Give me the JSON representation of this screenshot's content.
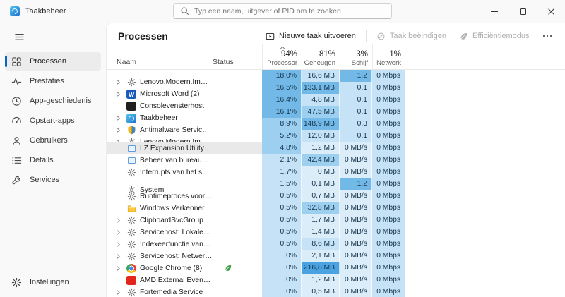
{
  "window": {
    "title": "Taakbeheer"
  },
  "search": {
    "placeholder": "Typ een naam, uitgever of PID om te zoeken"
  },
  "icons": {
    "more": "ellipsis-dots",
    "sort": "chevron-up",
    "status_leaf": "green-leaf"
  },
  "sidebar": {
    "items": [
      {
        "id": "processen",
        "label": "Processen",
        "icon": "grid",
        "selected": true
      },
      {
        "id": "prestaties",
        "label": "Prestaties",
        "icon": "pulse",
        "selected": false
      },
      {
        "id": "app-geschiedenis",
        "label": "App-geschiedenis",
        "icon": "history",
        "selected": false
      },
      {
        "id": "opstart-apps",
        "label": "Opstart-apps",
        "icon": "gauge",
        "selected": false
      },
      {
        "id": "gebruikers",
        "label": "Gebruikers",
        "icon": "users",
        "selected": false
      },
      {
        "id": "details",
        "label": "Details",
        "icon": "list",
        "selected": false
      },
      {
        "id": "services",
        "label": "Services",
        "icon": "wrench",
        "selected": false
      }
    ],
    "settings": {
      "id": "instellingen",
      "label": "Instellingen",
      "icon": "gear",
      "selected": false
    }
  },
  "toolbar": {
    "title": "Processen",
    "run_new_task": "Nieuwe taak uitvoeren",
    "end_task": "Taak beëindigen",
    "efficiency_mode": "Efficiëntiemodus"
  },
  "table": {
    "name_header": "Naam",
    "status_header": "Status",
    "usage_headers": [
      {
        "key": "processor",
        "percent": "94%",
        "label": "Processor",
        "sorted": true
      },
      {
        "key": "geheugen",
        "percent": "81%",
        "label": "Geheugen",
        "sorted": false
      },
      {
        "key": "schijf",
        "percent": "3%",
        "label": "Schijf",
        "sorted": false
      },
      {
        "key": "netwerk",
        "percent": "1%",
        "label": "Netwerk",
        "sorted": false
      }
    ],
    "rows": [
      {
        "name": "Lenovo.Modern.ImController (...",
        "icon": "gear",
        "chevron": true,
        "status_icon": "",
        "cpu": "18,0%",
        "mem": "16,6 MB",
        "disk": "1,2 MB/s",
        "net": "0 Mbps",
        "heat": [
          3,
          1,
          3,
          1
        ],
        "selected": false
      },
      {
        "name": "Microsoft Word (2)",
        "icon": "word",
        "chevron": true,
        "status_icon": "",
        "cpu": "16,5%",
        "mem": "133,1 MB",
        "disk": "0,1 MB/s",
        "net": "0 Mbps",
        "heat": [
          3,
          3,
          1,
          1
        ],
        "selected": false
      },
      {
        "name": "Consolevensterhost",
        "icon": "console",
        "chevron": false,
        "status_icon": "",
        "cpu": "16,4%",
        "mem": "4,8 MB",
        "disk": "0,1 MB/s",
        "net": "0 Mbps",
        "heat": [
          3,
          1,
          1,
          1
        ],
        "selected": false
      },
      {
        "name": "Taakbeheer",
        "icon": "taskmgr",
        "chevron": true,
        "status_icon": "",
        "cpu": "16,1%",
        "mem": "47,5 MB",
        "disk": "0,1 MB/s",
        "net": "0 Mbps",
        "heat": [
          3,
          2,
          1,
          1
        ],
        "selected": false
      },
      {
        "name": "Antimalware Service Executable",
        "icon": "shield",
        "chevron": true,
        "status_icon": "",
        "cpu": "8,9%",
        "mem": "148,9 MB",
        "disk": "0,3 MB/s",
        "net": "0 Mbps",
        "heat": [
          2,
          3,
          1,
          1
        ],
        "selected": false
      },
      {
        "name": "Lenovo.Modern.ImController (...",
        "icon": "gear",
        "chevron": true,
        "status_icon": "",
        "cpu": "5,2%",
        "mem": "12,0 MB",
        "disk": "0,1 MB/s",
        "net": "0 Mbps",
        "heat": [
          2,
          1,
          1,
          1
        ],
        "selected": false
      },
      {
        "name": "LZ Expansion Utility (32-bits)",
        "icon": "window",
        "chevron": false,
        "status_icon": "",
        "cpu": "4,8%",
        "mem": "1,2 MB",
        "disk": "0 MB/s",
        "net": "0 Mbps",
        "heat": [
          2,
          0,
          0,
          1
        ],
        "selected": true
      },
      {
        "name": "Beheer van bureaubladvensters",
        "icon": "window",
        "chevron": false,
        "status_icon": "",
        "cpu": "2,1%",
        "mem": "42,4 MB",
        "disk": "0 MB/s",
        "net": "0 Mbps",
        "heat": [
          1,
          2,
          0,
          1
        ],
        "selected": false
      },
      {
        "name": "Interrupts van het systeem",
        "icon": "gear",
        "chevron": false,
        "status_icon": "",
        "cpu": "1,7%",
        "mem": "0 MB",
        "disk": "0 MB/s",
        "net": "0 Mbps",
        "heat": [
          1,
          0,
          0,
          1
        ],
        "selected": false
      },
      {
        "name": "System",
        "icon": "gear",
        "chevron": false,
        "status_icon": "",
        "cpu": "1,5%",
        "mem": "0,1 MB",
        "disk": "1,2 MB/s",
        "net": "0 Mbps",
        "heat": [
          1,
          0,
          3,
          1
        ],
        "selected": false
      },
      {
        "name": "Runtimeproces voor client-serv...",
        "icon": "gear",
        "chevron": false,
        "status_icon": "",
        "cpu": "0,5%",
        "mem": "0,7 MB",
        "disk": "0 MB/s",
        "net": "0 Mbps",
        "heat": [
          1,
          0,
          0,
          1
        ],
        "selected": false
      },
      {
        "name": "Windows Verkenner",
        "icon": "folder",
        "chevron": false,
        "status_icon": "",
        "cpu": "0,5%",
        "mem": "32,8 MB",
        "disk": "0 MB/s",
        "net": "0 Mbps",
        "heat": [
          1,
          2,
          0,
          1
        ],
        "selected": false
      },
      {
        "name": "ClipboardSvcGroup",
        "icon": "gear",
        "chevron": true,
        "status_icon": "",
        "cpu": "0,5%",
        "mem": "1,7 MB",
        "disk": "0 MB/s",
        "net": "0 Mbps",
        "heat": [
          1,
          0,
          0,
          1
        ],
        "selected": false
      },
      {
        "name": "Servicehost: Lokale service (ne...",
        "icon": "gear",
        "chevron": true,
        "status_icon": "",
        "cpu": "0,5%",
        "mem": "1,4 MB",
        "disk": "0 MB/s",
        "net": "0 Mbps",
        "heat": [
          1,
          0,
          0,
          1
        ],
        "selected": false
      },
      {
        "name": "Indexeerfunctie van Microsoft ...",
        "icon": "gear",
        "chevron": true,
        "status_icon": "",
        "cpu": "0,5%",
        "mem": "8,6 MB",
        "disk": "0 MB/s",
        "net": "0 Mbps",
        "heat": [
          1,
          1,
          0,
          1
        ],
        "selected": false
      },
      {
        "name": "Servicehost: Netwerkservice",
        "icon": "gear",
        "chevron": true,
        "status_icon": "",
        "cpu": "0%",
        "mem": "2,1 MB",
        "disk": "0 MB/s",
        "net": "0 Mbps",
        "heat": [
          1,
          0,
          0,
          1
        ],
        "selected": false
      },
      {
        "name": "Google Chrome (8)",
        "icon": "chrome",
        "chevron": true,
        "status_icon": "leaf",
        "cpu": "0%",
        "mem": "216,8 MB",
        "disk": "0 MB/s",
        "net": "0 Mbps",
        "heat": [
          1,
          4,
          0,
          1
        ],
        "selected": false
      },
      {
        "name": "AMD External Events Client M...",
        "icon": "amd",
        "chevron": false,
        "status_icon": "",
        "cpu": "0%",
        "mem": "1,2 MB",
        "disk": "0 MB/s",
        "net": "0 Mbps",
        "heat": [
          1,
          0,
          0,
          1
        ],
        "selected": false
      },
      {
        "name": "Fortemedia Service",
        "icon": "gear",
        "chevron": true,
        "status_icon": "",
        "cpu": "0%",
        "mem": "0,5 MB",
        "disk": "0 MB/s",
        "net": "0 Mbps",
        "heat": [
          1,
          0,
          0,
          1
        ],
        "selected": false
      }
    ]
  },
  "colors": {
    "accent": "#0067c0",
    "heat": [
      "#dcedfa",
      "#c5e2f7",
      "#9ccff0",
      "#72b9e7",
      "#4aa3e0"
    ],
    "leaf_green": "#3d9e46",
    "selected_row": "#e9e9e9"
  }
}
